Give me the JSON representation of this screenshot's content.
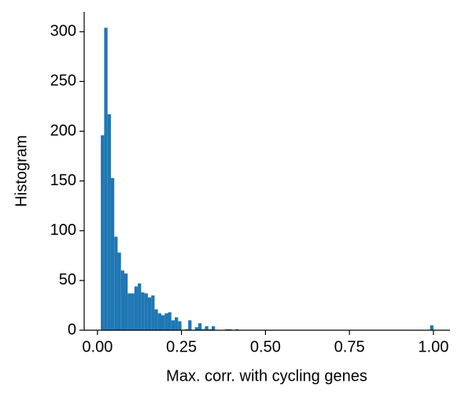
{
  "chart_data": {
    "type": "histogram",
    "xlabel": "Max. corr. with cycling genes",
    "ylabel": "Histogram",
    "color": "#1f77b4",
    "bins": [
      0.01,
      0.02,
      0.03,
      0.04,
      0.05,
      0.06,
      0.07,
      0.08,
      0.09,
      0.1,
      0.11,
      0.12,
      0.13,
      0.14,
      0.15,
      0.16,
      0.17,
      0.18,
      0.19,
      0.2,
      0.21,
      0.22,
      0.23,
      0.24,
      0.25,
      0.26,
      0.27,
      0.28,
      0.29,
      0.3,
      0.31,
      0.32,
      0.33,
      0.34,
      0.35,
      0.36,
      0.37,
      0.38,
      0.39,
      0.4,
      0.41,
      0.42,
      0.43,
      0.44,
      0.45,
      0.46,
      0.47,
      0.48,
      0.49,
      0.5,
      0.51,
      0.52,
      0.53,
      0.54,
      0.55,
      0.56,
      0.57,
      0.58,
      0.59,
      0.6,
      0.61,
      0.62,
      0.63,
      0.64,
      0.65,
      0.66,
      0.67,
      0.68,
      0.69,
      0.7,
      0.71,
      0.72,
      0.73,
      0.74,
      0.75,
      0.76,
      0.77,
      0.78,
      0.79,
      0.8,
      0.81,
      0.82,
      0.83,
      0.84,
      0.85,
      0.86,
      0.87,
      0.88,
      0.89,
      0.9,
      0.91,
      0.92,
      0.93,
      0.94,
      0.95,
      0.96,
      0.97,
      0.98,
      0.99,
      1.0
    ],
    "values": [
      196,
      304,
      217,
      153,
      94,
      78,
      60,
      57,
      37,
      37,
      44,
      47,
      38,
      37,
      33,
      35,
      21,
      17,
      15,
      17,
      18,
      10,
      13,
      9,
      0,
      1,
      10,
      0,
      3,
      7,
      1,
      4,
      1,
      4,
      0,
      0,
      0,
      1,
      1,
      0,
      1,
      0,
      0,
      0,
      0,
      0,
      0,
      0,
      0,
      0,
      0,
      0,
      0,
      0,
      0,
      0,
      0,
      0,
      0,
      0,
      0,
      0,
      0,
      0,
      0,
      0,
      0,
      0,
      0,
      0,
      0,
      0,
      0,
      0,
      0,
      0,
      0,
      0,
      0,
      0,
      0,
      0,
      0,
      0,
      0,
      0,
      0,
      0,
      0,
      0,
      0,
      0,
      0,
      0,
      0,
      0,
      0,
      0,
      5
    ],
    "xlim": [
      -0.0395,
      1.0495
    ],
    "xticks": [
      {
        "value": 0,
        "label": "0.00"
      },
      {
        "value": 0.25,
        "label": "0.25"
      },
      {
        "value": 0.5,
        "label": "0.50"
      },
      {
        "value": 0.75,
        "label": "0.75"
      },
      {
        "value": 1,
        "label": "1.00"
      }
    ],
    "ylim": [
      0,
      320
    ],
    "yticks": [
      0,
      50,
      100,
      150,
      200,
      250,
      300
    ]
  }
}
